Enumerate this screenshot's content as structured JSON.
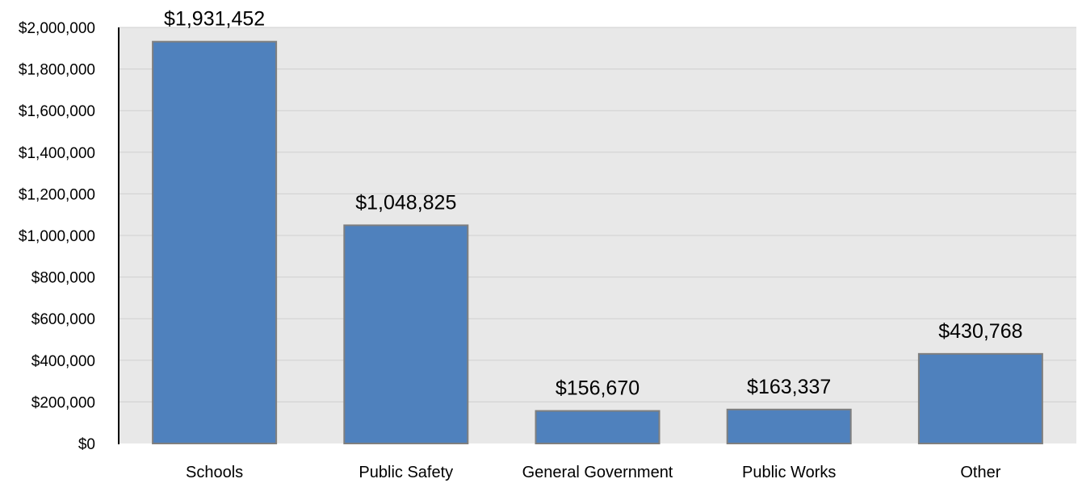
{
  "chart_data": {
    "type": "bar",
    "title": "",
    "xlabel": "",
    "ylabel": "",
    "categories": [
      "Schools",
      "Public Safety",
      "General Government",
      "Public Works",
      "Other"
    ],
    "values": [
      1931452,
      1048825,
      156670,
      163337,
      430768
    ],
    "value_labels": [
      "$1,931,452",
      "$1,048,825",
      "$156,670",
      "$163,337",
      "$430,768"
    ],
    "ylim": [
      0,
      2000000
    ],
    "yticks": [
      0,
      200000,
      400000,
      600000,
      800000,
      1000000,
      1200000,
      1400000,
      1600000,
      1800000,
      2000000
    ],
    "ytick_labels": [
      "$0",
      "$200,000",
      "$400,000",
      "$600,000",
      "$800,000",
      "$1,000,000",
      "$1,200,000",
      "$1,400,000",
      "$1,600,000",
      "$1,800,000",
      "$2,000,000"
    ],
    "grid": true,
    "legend": "none",
    "colors": {
      "bar": "#4f81bd",
      "bar_border": "#7f7f7f",
      "plot_background": "#e8e8e8",
      "gridline": "#cfcfcf",
      "axis": "#000000"
    }
  }
}
